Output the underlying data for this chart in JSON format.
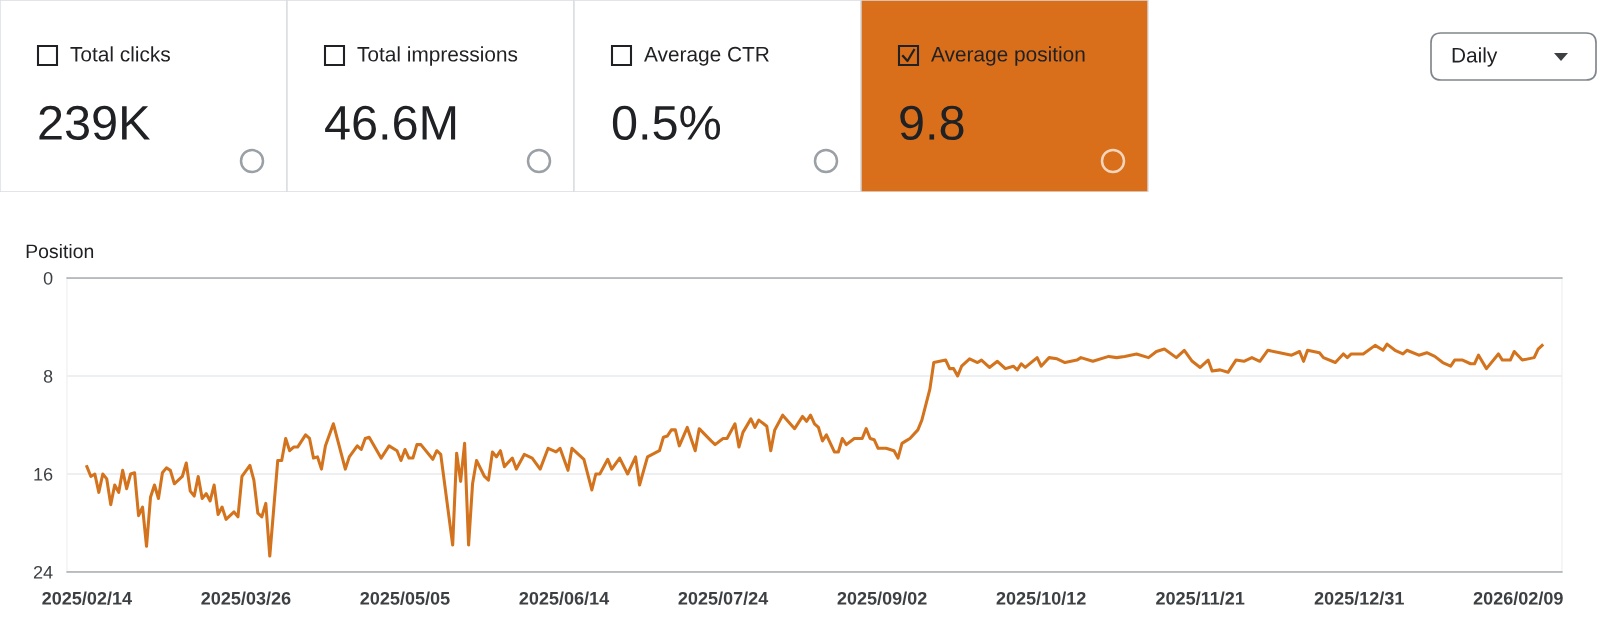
{
  "chart_data": [
    {
      "type": "other",
      "annotations": [
        "Total clicks",
        "239K",
        "Total impressions",
        "46.6M",
        "Average CTR",
        "0.5%",
        "Average position",
        "9.8",
        "Daily"
      ],
      "colors": [
        "#ffffff",
        "#ffffff",
        "#ffffff",
        "#d96f1a"
      ]
    },
    {
      "type": "line",
      "ylabel": "Position",
      "grid": "y",
      "line_style": "solid",
      "marker": "none",
      "ylim": [
        24,
        0
      ],
      "yticks": [
        0,
        8,
        16,
        24
      ],
      "xlim": [
        "2025-02-09",
        "2026-02-20"
      ],
      "xticks": [
        {
          "value": "2025-02-14",
          "label": "2025/02/14"
        },
        {
          "value": "2025-03-26",
          "label": "2025/03/26"
        },
        {
          "value": "2025-05-05",
          "label": "2025/05/05"
        },
        {
          "value": "2025-06-14",
          "label": "2025/06/14"
        },
        {
          "value": "2025-07-24",
          "label": "2025/07/24"
        },
        {
          "value": "2025-09-02",
          "label": "2025/09/02"
        },
        {
          "value": "2025-10-12",
          "label": "2025/10/12"
        },
        {
          "value": "2025-11-21",
          "label": "2025/11/21"
        },
        {
          "value": "2025-12-31",
          "label": "2025/12/31"
        },
        {
          "value": "2026-02-09",
          "label": "2026/02/09"
        }
      ],
      "x": [
        "2025-02-14",
        "2025-02-15",
        "2025-02-16",
        "2025-02-17",
        "2025-02-18",
        "2025-02-19",
        "2025-02-20",
        "2025-02-21",
        "2025-02-22",
        "2025-02-23",
        "2025-02-24",
        "2025-02-25",
        "2025-02-26",
        "2025-02-27",
        "2025-02-28",
        "2025-03-01",
        "2025-03-02",
        "2025-03-03",
        "2025-03-04",
        "2025-03-05",
        "2025-03-06",
        "2025-03-07",
        "2025-03-08",
        "2025-03-10",
        "2025-03-11",
        "2025-03-12",
        "2025-03-13",
        "2025-03-14",
        "2025-03-15",
        "2025-03-16",
        "2025-03-17",
        "2025-03-18",
        "2025-03-19",
        "2025-03-20",
        "2025-03-21",
        "2025-03-23",
        "2025-03-24",
        "2025-03-25",
        "2025-03-27",
        "2025-03-28",
        "2025-03-29",
        "2025-03-30",
        "2025-03-31",
        "2025-04-01",
        "2025-04-03",
        "2025-04-04",
        "2025-04-05",
        "2025-04-06",
        "2025-04-07",
        "2025-04-08",
        "2025-04-10",
        "2025-04-11",
        "2025-04-12",
        "2025-04-13",
        "2025-04-14",
        "2025-04-15",
        "2025-04-17",
        "2025-04-20",
        "2025-04-21",
        "2025-04-23",
        "2025-04-24",
        "2025-04-25",
        "2025-04-26",
        "2025-04-29",
        "2025-05-01",
        "2025-05-03",
        "2025-05-04",
        "2025-05-05",
        "2025-05-06",
        "2025-05-07",
        "2025-05-08",
        "2025-05-09",
        "2025-05-12",
        "2025-05-13",
        "2025-05-14",
        "2025-05-17",
        "2025-05-18",
        "2025-05-19",
        "2025-05-20",
        "2025-05-21",
        "2025-05-22",
        "2025-05-23",
        "2025-05-25",
        "2025-05-26",
        "2025-05-27",
        "2025-05-28",
        "2025-05-29",
        "2025-05-30",
        "2025-06-01",
        "2025-06-02",
        "2025-06-04",
        "2025-06-06",
        "2025-06-08",
        "2025-06-10",
        "2025-06-12",
        "2025-06-13",
        "2025-06-15",
        "2025-06-16",
        "2025-06-19",
        "2025-06-21",
        "2025-06-22",
        "2025-06-23",
        "2025-06-25",
        "2025-06-26",
        "2025-06-28",
        "2025-06-30",
        "2025-07-02",
        "2025-07-03",
        "2025-07-05",
        "2025-07-08",
        "2025-07-09",
        "2025-07-10",
        "2025-07-11",
        "2025-07-12",
        "2025-07-13",
        "2025-07-15",
        "2025-07-17",
        "2025-07-18",
        "2025-07-21",
        "2025-07-22",
        "2025-07-24",
        "2025-07-25",
        "2025-07-27",
        "2025-07-28",
        "2025-07-29",
        "2025-07-31",
        "2025-08-01",
        "2025-08-02",
        "2025-08-04",
        "2025-08-05",
        "2025-08-06",
        "2025-08-08",
        "2025-08-11",
        "2025-08-13",
        "2025-08-14",
        "2025-08-15",
        "2025-08-16",
        "2025-08-17",
        "2025-08-18",
        "2025-08-19",
        "2025-08-21",
        "2025-08-22",
        "2025-08-23",
        "2025-08-24",
        "2025-08-26",
        "2025-08-28",
        "2025-08-29",
        "2025-08-30",
        "2025-08-31",
        "2025-09-01",
        "2025-09-03",
        "2025-09-05",
        "2025-09-06",
        "2025-09-07",
        "2025-09-08",
        "2025-09-09",
        "2025-09-11",
        "2025-09-12",
        "2025-09-14",
        "2025-09-15",
        "2025-09-18",
        "2025-09-19",
        "2025-09-20",
        "2025-09-21",
        "2025-09-22",
        "2025-09-24",
        "2025-09-26",
        "2025-09-27",
        "2025-09-29",
        "2025-10-01",
        "2025-10-03",
        "2025-10-05",
        "2025-10-06",
        "2025-10-07",
        "2025-10-08",
        "2025-10-11",
        "2025-10-12",
        "2025-10-14",
        "2025-10-16",
        "2025-10-18",
        "2025-10-21",
        "2025-10-22",
        "2025-10-25",
        "2025-10-29",
        "2025-10-31",
        "2025-11-02",
        "2025-11-05",
        "2025-11-08",
        "2025-11-10",
        "2025-11-12",
        "2025-11-15",
        "2025-11-17",
        "2025-11-19",
        "2025-11-21",
        "2025-11-23",
        "2025-11-24",
        "2025-11-26",
        "2025-11-28",
        "2025-11-30",
        "2025-12-02",
        "2025-12-04",
        "2025-12-06",
        "2025-12-08",
        "2025-12-11",
        "2025-12-14",
        "2025-12-16",
        "2025-12-17",
        "2025-12-18",
        "2025-12-21",
        "2025-12-22",
        "2025-12-25",
        "2025-12-27",
        "2025-12-28",
        "2025-12-29",
        "2026-01-01",
        "2026-01-04",
        "2026-01-06",
        "2026-01-07",
        "2026-01-09",
        "2026-01-11",
        "2026-01-12",
        "2026-01-15",
        "2026-01-17",
        "2026-01-19",
        "2026-01-21",
        "2026-01-23",
        "2026-01-24",
        "2026-01-26",
        "2026-01-28",
        "2026-01-29",
        "2026-01-30",
        "2026-02-01",
        "2026-02-04",
        "2026-02-05",
        "2026-02-07",
        "2026-02-08",
        "2026-02-10",
        "2026-02-13",
        "2026-02-14",
        "2026-02-15"
      ],
      "series": [
        {
          "color": "#d4731d",
          "values": [
            15.4,
            16.2,
            16.0,
            17.5,
            16.0,
            16.4,
            18.5,
            16.9,
            17.5,
            15.7,
            17.2,
            16.0,
            15.9,
            19.4,
            18.7,
            21.9,
            17.9,
            16.9,
            18.0,
            15.9,
            15.5,
            15.7,
            16.8,
            16.2,
            15.1,
            17.4,
            17.8,
            16.2,
            18.0,
            17.6,
            18.2,
            16.9,
            19.3,
            18.7,
            19.7,
            19.1,
            19.5,
            16.2,
            15.3,
            16.5,
            19.2,
            19.5,
            18.4,
            22.7,
            14.9,
            14.9,
            13.1,
            14.1,
            13.8,
            13.8,
            12.8,
            13.1,
            14.7,
            14.6,
            15.6,
            13.7,
            11.9,
            15.6,
            14.6,
            13.7,
            14.0,
            13.1,
            13.0,
            14.7,
            13.7,
            14.1,
            14.9,
            14.0,
            14.7,
            14.7,
            13.6,
            13.6,
            14.8,
            14.1,
            14.4,
            21.8,
            14.3,
            16.6,
            13.5,
            21.8,
            16.8,
            14.9,
            16.2,
            16.5,
            14.2,
            14.6,
            14.1,
            15.4,
            14.7,
            15.6,
            14.4,
            14.7,
            15.6,
            13.9,
            14.2,
            13.9,
            15.7,
            13.9,
            14.8,
            17.3,
            16.0,
            16.0,
            14.8,
            15.6,
            14.7,
            16.0,
            14.6,
            16.9,
            14.6,
            14.1,
            13.0,
            12.9,
            12.4,
            12.4,
            13.7,
            12.2,
            14.1,
            12.3,
            13.3,
            13.6,
            13.1,
            13.1,
            11.9,
            13.8,
            12.6,
            11.5,
            12.2,
            11.6,
            12.1,
            14.1,
            12.4,
            11.2,
            12.3,
            11.3,
            11.7,
            11.2,
            11.9,
            12.2,
            13.3,
            12.8,
            14.2,
            14.2,
            13.1,
            13.6,
            13.1,
            13.1,
            12.3,
            13.1,
            13.2,
            13.9,
            13.9,
            14.1,
            14.7,
            13.5,
            13.3,
            13.1,
            12.4,
            11.6,
            9.1,
            6.9,
            6.7,
            7.4,
            7.4,
            8.0,
            7.2,
            6.6,
            6.9,
            6.7,
            7.3,
            6.8,
            7.4,
            7.2,
            7.5,
            7.0,
            7.3,
            6.5,
            7.2,
            6.5,
            6.6,
            6.9,
            6.7,
            6.5,
            6.8,
            6.4,
            6.5,
            6.4,
            6.2,
            6.5,
            6.0,
            5.8,
            6.5,
            5.9,
            6.8,
            7.3,
            6.7,
            7.6,
            7.5,
            7.7,
            6.7,
            6.8,
            6.5,
            6.8,
            5.9,
            6.1,
            6.3,
            6.0,
            6.8,
            5.9,
            6.1,
            6.5,
            6.9,
            6.2,
            6.5,
            6.2,
            6.2,
            5.5,
            5.9,
            5.4,
            5.9,
            6.2,
            5.9,
            6.3,
            6.1,
            6.4,
            6.9,
            7.2,
            6.7,
            6.7,
            7.0,
            7.0,
            6.3,
            7.4,
            6.2,
            6.7,
            6.7,
            6.0,
            6.7,
            6.5,
            5.8,
            5.5
          ]
        }
      ]
    }
  ]
}
